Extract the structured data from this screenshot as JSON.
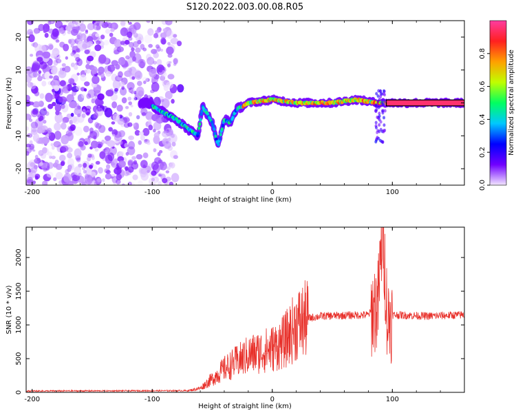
{
  "title": "S120.2022.003.00.08.R05",
  "chart_data": [
    {
      "type": "heatmap",
      "xlabel": "Height of straight line (km)",
      "ylabel": "Frequency (Hz)",
      "xlim": [
        -205,
        160
      ],
      "ylim": [
        -25,
        25
      ],
      "xticks": [
        -200,
        -100,
        0,
        100
      ],
      "yticks": [
        -20,
        -10,
        0,
        10,
        20
      ],
      "xtick_labels": [
        "-200",
        "-100",
        "0",
        "100"
      ],
      "ytick_labels": [
        "-20",
        "-10",
        "0",
        "10",
        "20"
      ],
      "colorbar": {
        "label": "Normalized spectral amplitude",
        "range": [
          0,
          1
        ],
        "ticks": [
          0.0,
          0.2,
          0.4,
          0.6,
          0.8
        ],
        "tick_labels": [
          "0.0",
          "0.2",
          "0.4",
          "0.6",
          "0.8"
        ],
        "colors": [
          "#f2e6ff",
          "#7000ff",
          "#0000ff",
          "#00c8ff",
          "#00ff60",
          "#c0ff00",
          "#ffa000",
          "#ff2020",
          "#ff3ca0"
        ]
      },
      "ridge": [
        {
          "x": -100,
          "y": -1
        },
        {
          "x": -90,
          "y": -3
        },
        {
          "x": -80,
          "y": -5
        },
        {
          "x": -70,
          "y": -8
        },
        {
          "x": -62,
          "y": -10
        },
        {
          "x": -58,
          "y": -1
        },
        {
          "x": -50,
          "y": -6
        },
        {
          "x": -45,
          "y": -13
        },
        {
          "x": -40,
          "y": -5
        },
        {
          "x": -35,
          "y": -6
        },
        {
          "x": -30,
          "y": -2
        },
        {
          "x": -20,
          "y": 0
        },
        {
          "x": 0,
          "y": 1
        },
        {
          "x": 20,
          "y": 0
        },
        {
          "x": 50,
          "y": 0
        },
        {
          "x": 70,
          "y": 1
        },
        {
          "x": 88,
          "y": 0
        },
        {
          "x": 95,
          "y": 0
        },
        {
          "x": 160,
          "y": 0
        }
      ]
    },
    {
      "type": "line",
      "xlabel": "Height of straight line (km)",
      "ylabel": "SNR (10 * v/v)",
      "xlim": [
        -205,
        160
      ],
      "ylim": [
        0,
        2450
      ],
      "xticks": [
        -200,
        -100,
        0,
        100
      ],
      "yticks": [
        0,
        500,
        1000,
        1500,
        2000
      ],
      "xtick_labels": [
        "-200",
        "-100",
        "0",
        "100"
      ],
      "ytick_labels": [
        "0",
        "500",
        "1000",
        "1500",
        "2000"
      ],
      "color": "#e8302a",
      "series": [
        {
          "values": [
            {
              "x": -205,
              "y": 20
            },
            {
              "x": -70,
              "y": 25
            },
            {
              "x": -60,
              "y": 60
            },
            {
              "x": -50,
              "y": 200
            },
            {
              "x": -40,
              "y": 350
            },
            {
              "x": -30,
              "y": 450
            },
            {
              "x": -20,
              "y": 550
            },
            {
              "x": -10,
              "y": 600
            },
            {
              "x": 0,
              "y": 650
            },
            {
              "x": 10,
              "y": 750
            },
            {
              "x": 20,
              "y": 1000
            },
            {
              "x": 30,
              "y": 1100
            },
            {
              "x": 40,
              "y": 1130
            },
            {
              "x": 60,
              "y": 1140
            },
            {
              "x": 80,
              "y": 1150
            },
            {
              "x": 88,
              "y": 1300
            },
            {
              "x": 92,
              "y": 2450
            },
            {
              "x": 96,
              "y": 1050
            },
            {
              "x": 100,
              "y": 1150
            },
            {
              "x": 130,
              "y": 1130
            },
            {
              "x": 160,
              "y": 1150
            }
          ]
        }
      ]
    }
  ]
}
